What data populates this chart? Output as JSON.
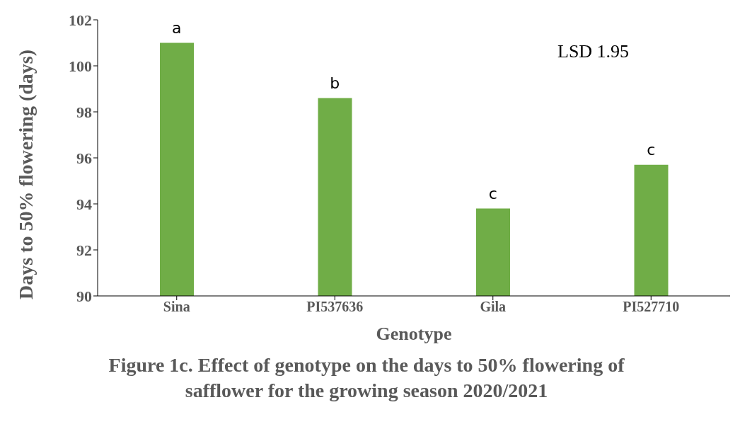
{
  "chart_data": {
    "type": "bar",
    "categories": [
      "Sina",
      "PI537636",
      "Gila",
      "PI527710"
    ],
    "values": [
      101.0,
      98.6,
      93.8,
      95.7
    ],
    "color": "#70ad47",
    "xlabel": "Genotype",
    "ylabel": "Days to 50% flowering (days)",
    "ylim": [
      90,
      102
    ],
    "yticks": [
      90,
      92,
      94,
      96,
      98,
      100,
      102
    ],
    "grid": false,
    "legend": false,
    "annotations": [
      {
        "text": "a",
        "x": "Sina",
        "y": 101.0
      },
      {
        "text": "b",
        "x": "PI537636",
        "y": 98.6
      },
      {
        "text": "c",
        "x": "Gila",
        "y": 93.8
      },
      {
        "text": "c",
        "x": "PI527710",
        "y": 95.7
      },
      "LSD 1.95",
      "Figure 1c. Effect of genotype on the days to 50% flowering of safflower for the growing season 2020/2021"
    ]
  }
}
